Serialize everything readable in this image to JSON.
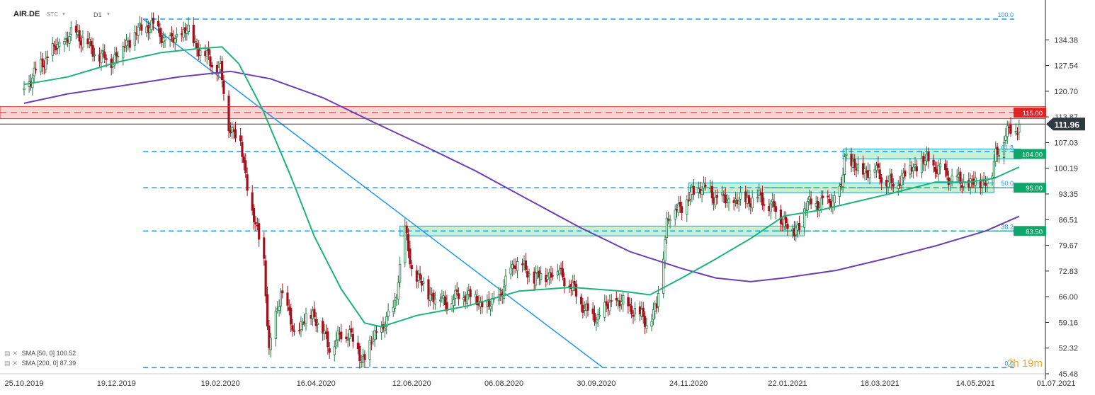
{
  "header": {
    "symbol": "AIR.DE",
    "market": "STC",
    "timeframe": "D1",
    "dropdown_icon": "chevron-down-icon"
  },
  "legend": [
    {
      "label": "SMA",
      "params": "[50, 0]",
      "value": "100.52",
      "color": "#1db37a"
    },
    {
      "label": "SMA",
      "params": "[200, 0]",
      "value": "87.39",
      "color": "#6c3fb3"
    }
  ],
  "candle_timer": {
    "value": "2h 19m"
  },
  "colors": {
    "up": "#1e7d45",
    "down": "#a3101c",
    "sma50": "#1db37a",
    "sma200": "#6c3fb3",
    "fib": "#2196f3",
    "support": "#14a86a",
    "resistance": "#e23b3b",
    "price": "#2f3a40"
  },
  "chart_data": {
    "type": "candlestick",
    "instrument": "AIR.DE",
    "timeframe": "D1",
    "x_labels": [
      "25.10.2019",
      "19.12.2019",
      "19.02.2020",
      "16.04.2020",
      "12.06.2020",
      "06.08.2020",
      "30.09.2020",
      "24.11.2020",
      "22.01.2021",
      "18.03.2021",
      "14.05.2021",
      "01.07.2021"
    ],
    "y_ticks": [
      "134.38",
      "127.54",
      "120.70",
      "113.87",
      "107.03",
      "100.19",
      "93.35",
      "86.51",
      "79.67",
      "72.83",
      "66.00",
      "59.16",
      "52.32",
      "45.48"
    ],
    "ylim": [
      45.48,
      141.22
    ],
    "current_price": {
      "label": "111.96",
      "value": 111.96
    },
    "fibonacci": [
      {
        "label": "100.0",
        "value": 139.9
      },
      {
        "label": "61.8",
        "value": 104.6
      },
      {
        "label": "50.0",
        "value": 95.0
      },
      {
        "label": "38.2",
        "value": 83.5
      },
      {
        "label": "0.0",
        "value": 47.1
      }
    ],
    "zones": [
      {
        "label": "115.00",
        "value": 115.0,
        "kind": "resistance"
      },
      {
        "label": "104.00",
        "value": 104.0,
        "kind": "support"
      },
      {
        "label": "95.00",
        "value": 95.0,
        "kind": "support"
      },
      {
        "label": "83.50",
        "value": 83.5,
        "kind": "support"
      }
    ],
    "trendline": {
      "from": {
        "date": "2020-01-04",
        "price": 139.9
      },
      "to": {
        "date": "2020-10-04",
        "price": 47.1
      }
    },
    "anchors": [
      [
        "2019-10-25",
        122.0
      ],
      [
        "2019-11-10",
        131.0
      ],
      [
        "2019-11-25",
        136.5
      ],
      [
        "2019-12-05",
        131.5
      ],
      [
        "2019-12-15",
        128.5
      ],
      [
        "2019-12-30",
        136.0
      ],
      [
        "2020-01-08",
        138.5
      ],
      [
        "2020-01-20",
        133.5
      ],
      [
        "2020-01-30",
        137.0
      ],
      [
        "2020-02-07",
        131.5
      ],
      [
        "2020-02-14",
        128.5
      ],
      [
        "2020-02-19",
        126.0
      ],
      [
        "2020-02-24",
        112.0
      ],
      [
        "2020-03-02",
        107.0
      ],
      [
        "2020-03-09",
        88.0
      ],
      [
        "2020-03-16",
        76.0
      ],
      [
        "2020-03-19",
        51.0
      ],
      [
        "2020-03-26",
        68.0
      ],
      [
        "2020-04-03",
        56.0
      ],
      [
        "2020-04-14",
        62.0
      ],
      [
        "2020-04-24",
        53.0
      ],
      [
        "2020-05-06",
        57.0
      ],
      [
        "2020-05-13",
        49.0
      ],
      [
        "2020-05-22",
        56.0
      ],
      [
        "2020-06-01",
        62.0
      ],
      [
        "2020-06-05",
        74.0
      ],
      [
        "2020-06-08",
        83.5
      ],
      [
        "2020-06-12",
        73.0
      ],
      [
        "2020-06-22",
        67.0
      ],
      [
        "2020-07-03",
        64.5
      ],
      [
        "2020-07-14",
        67.0
      ],
      [
        "2020-07-28",
        63.0
      ],
      [
        "2020-08-06",
        68.0
      ],
      [
        "2020-08-12",
        75.5
      ],
      [
        "2020-08-24",
        71.0
      ],
      [
        "2020-09-08",
        73.0
      ],
      [
        "2020-09-16",
        68.0
      ],
      [
        "2020-09-28",
        60.0
      ],
      [
        "2020-10-12",
        65.0
      ],
      [
        "2020-10-23",
        62.5
      ],
      [
        "2020-10-30",
        59.0
      ],
      [
        "2020-11-05",
        63.0
      ],
      [
        "2020-11-09",
        78.0
      ],
      [
        "2020-11-11",
        86.5
      ],
      [
        "2020-11-17",
        89.5
      ],
      [
        "2020-11-24",
        92.0
      ],
      [
        "2020-12-01",
        95.5
      ],
      [
        "2020-12-08",
        93.0
      ],
      [
        "2020-12-18",
        91.0
      ],
      [
        "2021-01-05",
        92.5
      ],
      [
        "2021-01-14",
        89.5
      ],
      [
        "2021-01-26",
        83.0
      ],
      [
        "2021-02-03",
        90.5
      ],
      [
        "2021-02-15",
        91.0
      ],
      [
        "2021-02-23",
        94.0
      ],
      [
        "2021-02-25",
        103.5
      ],
      [
        "2021-03-05",
        99.5
      ],
      [
        "2021-03-15",
        100.0
      ],
      [
        "2021-03-25",
        95.5
      ],
      [
        "2021-04-06",
        100.5
      ],
      [
        "2021-04-15",
        102.0
      ],
      [
        "2021-04-26",
        98.5
      ],
      [
        "2021-05-06",
        96.0
      ],
      [
        "2021-05-17",
        96.5
      ],
      [
        "2021-05-24",
        98.5
      ],
      [
        "2021-05-26",
        104.0
      ],
      [
        "2021-06-01",
        109.0
      ],
      [
        "2021-06-09",
        111.96
      ]
    ],
    "sma50": [
      [
        "2019-10-25",
        122.5
      ],
      [
        "2019-11-20",
        124.5
      ],
      [
        "2019-12-20",
        128.5
      ],
      [
        "2020-01-15",
        131.0
      ],
      [
        "2020-02-05",
        132.0
      ],
      [
        "2020-02-20",
        132.5
      ],
      [
        "2020-03-01",
        128.0
      ],
      [
        "2020-03-15",
        116.0
      ],
      [
        "2020-04-01",
        98.0
      ],
      [
        "2020-04-15",
        82.0
      ],
      [
        "2020-05-01",
        68.0
      ],
      [
        "2020-05-15",
        59.0
      ],
      [
        "2020-05-25",
        58.0
      ],
      [
        "2020-06-15",
        61.0
      ],
      [
        "2020-07-15",
        63.5
      ],
      [
        "2020-08-15",
        67.5
      ],
      [
        "2020-09-15",
        68.5
      ],
      [
        "2020-10-15",
        67.5
      ],
      [
        "2020-11-01",
        66.5
      ],
      [
        "2020-11-20",
        71.0
      ],
      [
        "2020-12-10",
        76.0
      ],
      [
        "2020-12-31",
        81.5
      ],
      [
        "2021-01-20",
        87.5
      ],
      [
        "2021-02-10",
        89.0
      ],
      [
        "2021-03-01",
        91.0
      ],
      [
        "2021-03-25",
        93.5
      ],
      [
        "2021-04-20",
        96.5
      ],
      [
        "2021-05-10",
        96.5
      ],
      [
        "2021-05-25",
        97.5
      ],
      [
        "2021-06-09",
        100.52
      ]
    ],
    "sma200": [
      [
        "2019-10-25",
        117.5
      ],
      [
        "2019-11-20",
        120.0
      ],
      [
        "2019-12-20",
        122.0
      ],
      [
        "2020-01-25",
        124.5
      ],
      [
        "2020-02-25",
        126.0
      ],
      [
        "2020-03-20",
        124.0
      ],
      [
        "2020-04-20",
        119.0
      ],
      [
        "2020-05-20",
        112.5
      ],
      [
        "2020-06-20",
        106.0
      ],
      [
        "2020-07-20",
        99.5
      ],
      [
        "2020-08-20",
        92.0
      ],
      [
        "2020-09-20",
        84.5
      ],
      [
        "2020-10-20",
        78.0
      ],
      [
        "2020-11-20",
        73.5
      ],
      [
        "2020-12-10",
        71.0
      ],
      [
        "2020-12-31",
        70.0
      ],
      [
        "2021-01-20",
        71.0
      ],
      [
        "2021-02-20",
        73.0
      ],
      [
        "2021-03-20",
        76.0
      ],
      [
        "2021-04-20",
        79.5
      ],
      [
        "2021-05-20",
        83.5
      ],
      [
        "2021-06-09",
        87.39
      ]
    ]
  }
}
